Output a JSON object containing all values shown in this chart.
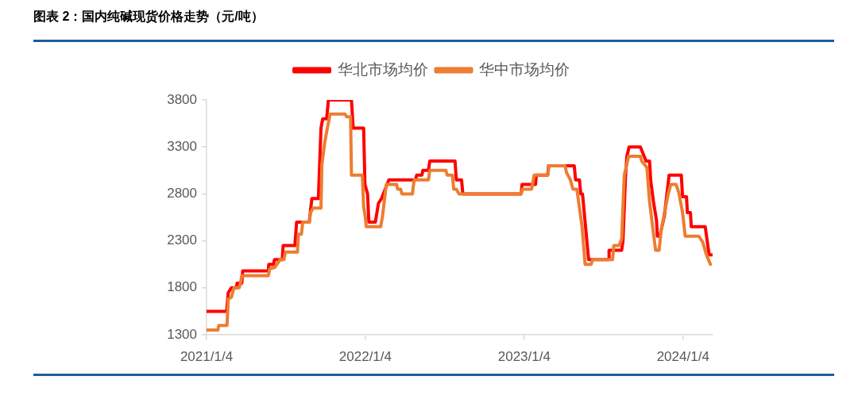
{
  "chart_data": {
    "type": "line",
    "title": "图表 2：国内纯碱现货价格走势（元/吨）",
    "series": [
      {
        "name": "华北市场均价",
        "color": "#ff0000",
        "x": [
          "2021-01-04",
          "2021-02-19",
          "2021-02-23",
          "2021-03-02",
          "2021-03-14",
          "2021-03-15",
          "2021-03-26",
          "2021-03-28",
          "2021-05-26",
          "2021-05-27",
          "2021-06-07",
          "2021-06-09",
          "2021-06-27",
          "2021-06-29",
          "2021-07-26",
          "2021-07-30",
          "2021-08-28",
          "2021-09-03",
          "2021-09-18",
          "2021-09-24",
          "2021-09-28",
          "2021-10-07",
          "2021-10-11",
          "2021-12-03",
          "2021-12-07",
          "2021-12-31",
          "2022-01-03",
          "2022-01-09",
          "2022-01-12",
          "2022-01-27",
          "2022-02-03",
          "2022-02-10",
          "2022-02-27",
          "2022-04-29",
          "2022-05-02",
          "2022-05-14",
          "2022-05-16",
          "2022-05-29",
          "2022-06-01",
          "2022-07-29",
          "2022-08-01",
          "2022-08-13",
          "2022-08-16",
          "2022-12-28",
          "2022-12-30",
          "2023-01-30",
          "2023-02-01",
          "2023-02-27",
          "2023-03-01",
          "2023-04-29",
          "2023-05-02",
          "2023-05-11",
          "2023-05-14",
          "2023-05-18",
          "2023-05-29",
          "2023-06-01",
          "2023-07-17",
          "2023-07-18",
          "2023-08-16",
          "2023-08-19",
          "2023-08-25",
          "2023-08-28",
          "2023-09-02",
          "2023-09-28",
          "2023-10-11",
          "2023-10-19",
          "2023-10-22",
          "2023-10-28",
          "2023-11-04",
          "2023-11-06",
          "2023-11-12",
          "2023-11-15",
          "2023-11-22",
          "2023-11-28",
          "2023-12-03",
          "2023-12-31",
          "2024-01-03",
          "2024-01-12",
          "2024-01-14",
          "2024-01-21",
          "2024-01-23",
          "2024-02-24",
          "2024-03-04",
          "2024-03-10"
        ],
        "values": [
          1550,
          1550,
          1750,
          1800,
          1800,
          1850,
          1850,
          1980,
          1980,
          2050,
          2050,
          2100,
          2100,
          2250,
          2250,
          2500,
          2500,
          2750,
          2750,
          3500,
          3600,
          3600,
          3800,
          3800,
          3500,
          3500,
          2900,
          2800,
          2500,
          2500,
          2700,
          2750,
          2950,
          2950,
          3000,
          3000,
          3050,
          3050,
          3150,
          3150,
          2950,
          2950,
          2800,
          2800,
          2900,
          2900,
          3000,
          3000,
          3100,
          3100,
          2950,
          2950,
          2800,
          2800,
          2250,
          2100,
          2100,
          2200,
          2200,
          2300,
          3000,
          3200,
          3300,
          3300,
          3150,
          3150,
          2930,
          2720,
          2520,
          2350,
          2350,
          2420,
          2560,
          2800,
          3000,
          3000,
          2770,
          2770,
          2600,
          2600,
          2450,
          2450,
          2150,
          2150
        ]
      },
      {
        "name": "华中市场均价",
        "color": "#ed7d31",
        "x": [
          "2021-01-04",
          "2021-01-30",
          "2021-02-01",
          "2021-02-20",
          "2021-02-23",
          "2021-03-02",
          "2021-03-08",
          "2021-03-20",
          "2021-03-23",
          "2021-03-26",
          "2021-05-26",
          "2021-05-29",
          "2021-06-10",
          "2021-06-22",
          "2021-07-01",
          "2021-07-04",
          "2021-08-01",
          "2021-08-03",
          "2021-08-10",
          "2021-08-13",
          "2021-08-28",
          "2021-08-31",
          "2021-09-06",
          "2021-09-24",
          "2021-09-26",
          "2021-10-03",
          "2021-10-09",
          "2021-10-15",
          "2021-11-18",
          "2021-11-22",
          "2021-12-01",
          "2021-12-03",
          "2021-12-28",
          "2021-12-31",
          "2022-01-04",
          "2022-01-06",
          "2022-02-08",
          "2022-02-12",
          "2022-02-18",
          "2022-02-21",
          "2022-03-17",
          "2022-03-19",
          "2022-03-26",
          "2022-03-29",
          "2022-04-22",
          "2022-04-26",
          "2022-05-29",
          "2022-06-01",
          "2022-07-08",
          "2022-07-11",
          "2022-07-23",
          "2022-07-26",
          "2022-08-01",
          "2022-08-07",
          "2022-12-28",
          "2022-12-31",
          "2023-01-21",
          "2023-01-27",
          "2023-02-27",
          "2023-03-02",
          "2023-04-08",
          "2023-04-11",
          "2023-04-20",
          "2023-04-26",
          "2023-05-05",
          "2023-05-11",
          "2023-05-17",
          "2023-05-24",
          "2023-06-07",
          "2023-06-10",
          "2023-07-26",
          "2023-07-29",
          "2023-08-10",
          "2023-08-16",
          "2023-08-22",
          "2023-09-01",
          "2023-09-28",
          "2023-10-01",
          "2023-10-13",
          "2023-10-19",
          "2023-10-28",
          "2023-11-02",
          "2023-11-10",
          "2023-11-15",
          "2023-11-22",
          "2023-12-01",
          "2023-12-07",
          "2023-12-19",
          "2023-12-25",
          "2024-01-03",
          "2024-01-09",
          "2024-02-09",
          "2024-02-18",
          "2024-02-27",
          "2024-03-07"
        ],
        "values": [
          1350,
          1350,
          1400,
          1400,
          1680,
          1700,
          1800,
          1800,
          1850,
          1930,
          1930,
          2000,
          2020,
          2100,
          2100,
          2180,
          2180,
          2370,
          2370,
          2500,
          2500,
          2600,
          2650,
          2650,
          3110,
          3360,
          3510,
          3650,
          3650,
          3620,
          3620,
          3000,
          3000,
          2660,
          2550,
          2450,
          2450,
          2550,
          2780,
          2900,
          2900,
          2850,
          2850,
          2800,
          2800,
          2950,
          2950,
          3050,
          3050,
          3000,
          3000,
          2850,
          2850,
          2800,
          2800,
          2850,
          2850,
          3000,
          3000,
          3100,
          3100,
          3030,
          2950,
          2850,
          2850,
          2650,
          2450,
          2050,
          2050,
          2100,
          2100,
          2250,
          2250,
          2320,
          3000,
          3200,
          3200,
          3150,
          3080,
          2720,
          2380,
          2200,
          2200,
          2420,
          2590,
          2800,
          2900,
          2900,
          2820,
          2600,
          2350,
          2350,
          2290,
          2150,
          2050
        ]
      }
    ],
    "xlim": [
      "2021-01-04",
      "2024-03-12"
    ],
    "xticks": [
      {
        "value": "2021-01-04",
        "label": "2021/1/4"
      },
      {
        "value": "2022-01-04",
        "label": "2022/1/4"
      },
      {
        "value": "2023-01-04",
        "label": "2023/1/4"
      },
      {
        "value": "2024-01-04",
        "label": "2024/1/4"
      }
    ],
    "ylim": [
      1300,
      3800
    ],
    "yticks": [
      1300,
      1800,
      2300,
      2800,
      3300,
      3800
    ],
    "grid": false,
    "legend": "top",
    "marker": "none"
  }
}
